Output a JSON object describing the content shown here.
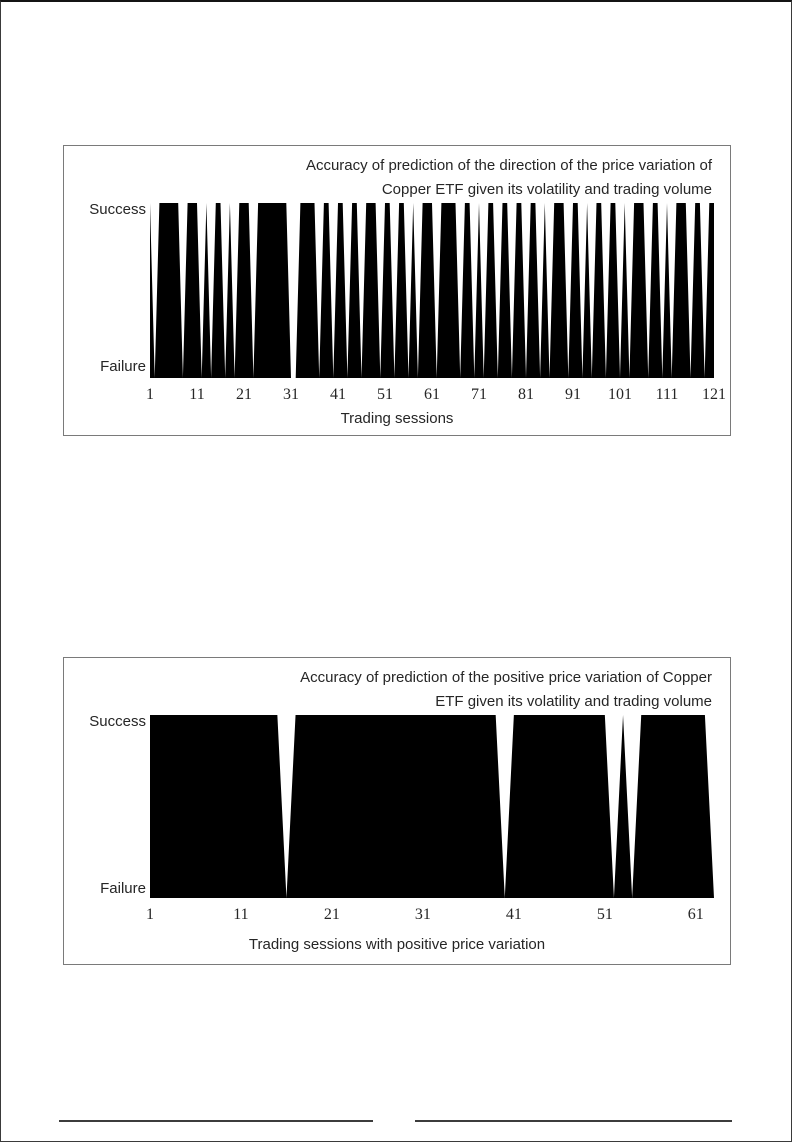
{
  "colors": {
    "series_fill": "#000000",
    "text_color": "#262626",
    "figure_border": "#7a7a7a"
  },
  "chart_data": [
    {
      "type": "area",
      "title": "Accuracy of prediction of the direction of the price variation of Copper ETF given its volatility and trading volume",
      "title_lines": [
        "Accuracy of prediction of the direction of the price variation of",
        "Copper ETF given its volatility and trading volume"
      ],
      "xlabel": "Trading sessions",
      "ylabel": "",
      "y_top_label": "Success",
      "y_bottom_label": "Failure",
      "y_categories": [
        "Failure",
        "Success"
      ],
      "x_range": [
        1,
        121
      ],
      "x_ticks": [
        1,
        11,
        21,
        31,
        41,
        51,
        61,
        71,
        81,
        91,
        101,
        111,
        121
      ],
      "grid": false,
      "legend": false,
      "fill_color": "#000000",
      "values": [
        1,
        0,
        1,
        1,
        1,
        1,
        1,
        0,
        1,
        1,
        1,
        0,
        1,
        0,
        1,
        1,
        0,
        1,
        0,
        1,
        1,
        1,
        0,
        1,
        1,
        1,
        1,
        1,
        1,
        1,
        0,
        0,
        1,
        1,
        1,
        1,
        0,
        1,
        1,
        0,
        1,
        1,
        0,
        1,
        1,
        0,
        1,
        1,
        1,
        0,
        1,
        1,
        0,
        1,
        1,
        0,
        1,
        0,
        1,
        1,
        1,
        0,
        1,
        1,
        1,
        1,
        0,
        1,
        1,
        0,
        1,
        0,
        1,
        1,
        0,
        1,
        1,
        0,
        1,
        1,
        0,
        1,
        1,
        0,
        1,
        0,
        1,
        1,
        1,
        0,
        1,
        1,
        0,
        1,
        0,
        1,
        1,
        0,
        1,
        1,
        0,
        1,
        0,
        1,
        1,
        1,
        0,
        1,
        1,
        0,
        1,
        0,
        1,
        1,
        1,
        0,
        1,
        1,
        0,
        1,
        1
      ]
    },
    {
      "type": "area",
      "title": "Accuracy of prediction of the positive price variation of Copper ETF given its volatility and trading volume",
      "title_lines": [
        "Accuracy of prediction of the positive price variation of Copper",
        "ETF given its volatility and trading volume"
      ],
      "xlabel": "Trading sessions with positive price variation",
      "ylabel": "",
      "y_top_label": "Success",
      "y_bottom_label": "Failure",
      "y_categories": [
        "Failure",
        "Success"
      ],
      "x_range": [
        1,
        63
      ],
      "x_ticks": [
        1,
        11,
        21,
        31,
        41,
        51,
        61
      ],
      "grid": false,
      "legend": false,
      "fill_color": "#000000",
      "values": [
        1,
        1,
        1,
        1,
        1,
        1,
        1,
        1,
        1,
        1,
        1,
        1,
        1,
        1,
        1,
        0,
        1,
        1,
        1,
        1,
        1,
        1,
        1,
        1,
        1,
        1,
        1,
        1,
        1,
        1,
        1,
        1,
        1,
        1,
        1,
        1,
        1,
        1,
        1,
        0,
        1,
        1,
        1,
        1,
        1,
        1,
        1,
        1,
        1,
        1,
        1,
        0,
        1,
        0,
        1,
        1,
        1,
        1,
        1,
        1,
        1,
        1,
        0
      ]
    }
  ]
}
